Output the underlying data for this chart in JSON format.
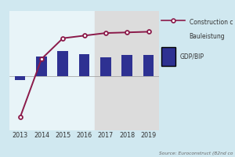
{
  "years": [
    2013,
    2014,
    2015,
    2016,
    2017,
    2018,
    2019
  ],
  "gdp_values": [
    -0.3,
    1.5,
    1.9,
    1.7,
    1.4,
    1.6,
    1.6
  ],
  "construction_values": [
    -3.2,
    1.3,
    2.9,
    3.1,
    3.3,
    3.35,
    3.4
  ],
  "bar_color": "#2e3192",
  "line_color": "#8b1a4a",
  "plot_bg": "#e8f4f8",
  "forecast_start_year": 2017,
  "forecast_bg": "#dcdcdc",
  "outer_bg": "#d0e8f0",
  "legend_construction_line1": "Construction c",
  "legend_construction_line2": "Bauleistung",
  "legend_gdp": "GDP/BIP",
  "source_text": "Source: Euroconstruct (82nd co",
  "xlim": [
    2012.5,
    2019.5
  ],
  "ylim": [
    -4.2,
    5.0
  ],
  "bar_width": 0.5
}
